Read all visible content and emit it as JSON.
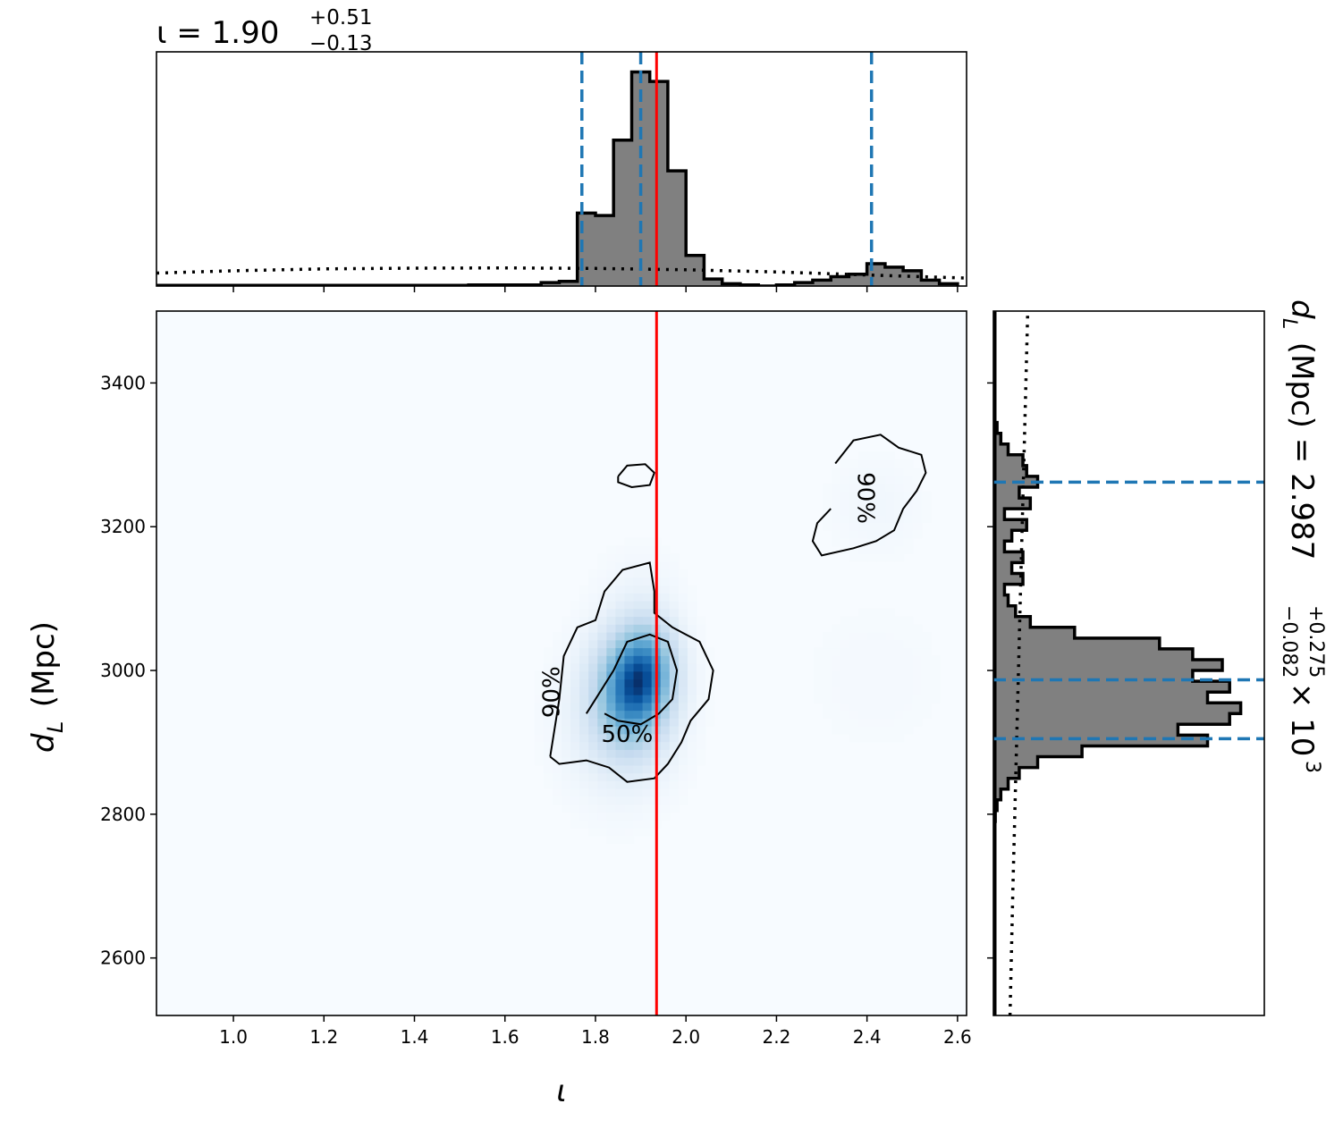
{
  "chart_data": {
    "type": "corner",
    "top_title": {
      "param": "ι",
      "equals": " = ",
      "value": "1.90",
      "upper": "+0.51",
      "lower": "−0.13"
    },
    "right_title": {
      "param": "d",
      "sub": "L",
      "unit": " (Mpc) = ",
      "value": "2.987",
      "upper": "+0.275",
      "lower": "−0.082",
      "times": " × 10",
      "exp": "3"
    },
    "xlabel": "ι",
    "ylabel": {
      "param": "d",
      "sub": "L",
      "unit": " (Mpc)"
    },
    "xlim": [
      0.83,
      2.62
    ],
    "ylim": [
      2520,
      3500
    ],
    "xticks": [
      1.0,
      1.2,
      1.4,
      1.6,
      1.8,
      2.0,
      2.2,
      2.4,
      2.6
    ],
    "xtick_labels": [
      "1.0",
      "1.2",
      "1.4",
      "1.6",
      "1.8",
      "2.0",
      "2.2",
      "2.4",
      "2.6"
    ],
    "yticks": [
      2600,
      2800,
      3000,
      3200,
      3400
    ],
    "ytick_labels": [
      "2600",
      "2800",
      "3000",
      "3200",
      "3400"
    ],
    "injection_iota": 1.935,
    "iota_quantiles": [
      1.77,
      1.9,
      2.41
    ],
    "dl_quantiles": [
      2905,
      2987,
      3262
    ],
    "iota_hist": {
      "edges": [
        1.52,
        1.56,
        1.6,
        1.64,
        1.68,
        1.72,
        1.76,
        1.8,
        1.84,
        1.88,
        1.92,
        1.96,
        2.0,
        2.04,
        2.08,
        2.12,
        2.16,
        2.2,
        2.24,
        2.28,
        2.32,
        2.36,
        2.4,
        2.44,
        2.48,
        2.52,
        2.56,
        2.6
      ],
      "counts": [
        0.5,
        0.5,
        0.5,
        0.5,
        1.5,
        2.0,
        31.0,
        30.0,
        62.0,
        91.0,
        87.0,
        49.0,
        13.0,
        3.0,
        1.0,
        0.5,
        0.0,
        0.5,
        1.5,
        2.5,
        4.0,
        5.0,
        9.5,
        8.0,
        6.5,
        2.5,
        1.0
      ],
      "ymax": 95
    },
    "iota_prior": {
      "x": [
        0.83,
        1.0,
        1.2,
        1.4,
        1.6,
        1.8,
        2.0,
        2.2,
        2.4,
        2.62
      ],
      "y": [
        5.5,
        6.5,
        7.3,
        7.6,
        7.7,
        7.5,
        6.9,
        6.0,
        4.7,
        3.4
      ]
    },
    "dl_hist": {
      "edges": [
        2790,
        2805,
        2820,
        2835,
        2850,
        2865,
        2880,
        2895,
        2910,
        2925,
        2940,
        2955,
        2970,
        2985,
        3000,
        3015,
        3030,
        3045,
        3060,
        3075,
        3090,
        3105,
        3120,
        3135,
        3150,
        3165,
        3180,
        3195,
        3210,
        3225,
        3240,
        3255,
        3270,
        3285,
        3300,
        3315,
        3330,
        3345
      ],
      "counts": [
        0.5,
        1,
        2,
        4,
        7,
        12,
        24,
        58,
        50,
        64,
        67,
        58,
        64,
        54,
        62,
        54,
        45,
        22,
        10,
        6,
        4,
        3,
        8,
        5,
        8,
        3,
        5,
        9,
        3,
        10,
        7,
        12,
        9,
        8,
        4,
        2,
        1
      ],
      "xmax": 70
    },
    "dl_prior": {
      "y": [
        2520,
        2700,
        2900,
        3100,
        3300,
        3500
      ],
      "x": [
        4.5,
        5.3,
        6.3,
        7.3,
        8.3,
        9.3
      ]
    },
    "density_blobs": [
      {
        "x": 1.88,
        "y": 2975,
        "sx": 0.055,
        "sy": 55,
        "w": 1.0
      },
      {
        "x": 1.92,
        "y": 3010,
        "sx": 0.045,
        "sy": 45,
        "w": 0.55
      },
      {
        "x": 1.85,
        "y": 2930,
        "sx": 0.08,
        "sy": 70,
        "w": 0.25
      },
      {
        "x": 1.9,
        "y": 3120,
        "sx": 0.06,
        "sy": 40,
        "w": 0.05
      },
      {
        "x": 2.42,
        "y": 3230,
        "sx": 0.07,
        "sy": 45,
        "w": 0.06
      },
      {
        "x": 2.42,
        "y": 2990,
        "sx": 0.12,
        "sy": 80,
        "w": 0.03
      }
    ],
    "contours": [
      {
        "level": "90%",
        "points": [
          [
            1.7,
            2880
          ],
          [
            1.71,
            2920
          ],
          [
            1.72,
            2960
          ],
          [
            1.73,
            3020
          ],
          [
            1.76,
            3060
          ],
          [
            1.8,
            3070
          ],
          [
            1.82,
            3110
          ],
          [
            1.86,
            3140
          ],
          [
            1.92,
            3150
          ],
          [
            1.93,
            3110
          ],
          [
            1.93,
            3080
          ],
          [
            1.97,
            3060
          ],
          [
            2.03,
            3040
          ],
          [
            2.06,
            3000
          ],
          [
            2.05,
            2960
          ],
          [
            2.01,
            2930
          ],
          [
            1.99,
            2900
          ],
          [
            1.96,
            2870
          ],
          [
            1.93,
            2850
          ],
          [
            1.87,
            2845
          ],
          [
            1.83,
            2865
          ],
          [
            1.78,
            2875
          ],
          [
            1.72,
            2870
          ],
          [
            1.7,
            2880
          ]
        ],
        "label": "90%",
        "label_x": 1.705,
        "label_y": 2970,
        "label_rot": -90
      },
      {
        "level": "50%",
        "points": [
          [
            1.78,
            2940
          ],
          [
            1.8,
            2960
          ],
          [
            1.84,
            3000
          ],
          [
            1.87,
            3040
          ],
          [
            1.92,
            3050
          ],
          [
            1.96,
            3040
          ],
          [
            1.98,
            3000
          ],
          [
            1.97,
            2960
          ],
          [
            1.94,
            2940
          ],
          [
            1.9,
            2925
          ],
          [
            1.85,
            2930
          ],
          [
            1.82,
            2940
          ]
        ],
        "label": "50%",
        "label_x": 1.87,
        "label_y": 2910,
        "label_rot": 0
      },
      {
        "level": "90%",
        "points": [
          [
            1.85,
            3270
          ],
          [
            1.87,
            3285
          ],
          [
            1.91,
            3287
          ],
          [
            1.93,
            3275
          ],
          [
            1.92,
            3258
          ],
          [
            1.88,
            3255
          ],
          [
            1.85,
            3262
          ],
          [
            1.85,
            3270
          ]
        ],
        "label": "",
        "label_x": 0,
        "label_y": 0,
        "label_rot": 0
      },
      {
        "level": "90%",
        "points": [
          [
            2.33,
            3288
          ],
          [
            2.37,
            3320
          ],
          [
            2.43,
            3328
          ],
          [
            2.47,
            3310
          ],
          [
            2.52,
            3300
          ],
          [
            2.53,
            3275
          ],
          [
            2.51,
            3250
          ],
          [
            2.48,
            3225
          ],
          [
            2.46,
            3195
          ],
          [
            2.42,
            3180
          ],
          [
            2.37,
            3170
          ],
          [
            2.3,
            3160
          ],
          [
            2.28,
            3180
          ],
          [
            2.29,
            3205
          ],
          [
            2.32,
            3225
          ]
        ],
        "label": "90%",
        "label_x": 2.395,
        "label_y": 3240,
        "label_rot": 90
      }
    ],
    "colors": {
      "hist_fill": "#808080",
      "quantile": "#1f77b4",
      "truth": "#ff0000",
      "cmap_low": "#f7fbff",
      "cmap_high": "#08306b"
    }
  }
}
